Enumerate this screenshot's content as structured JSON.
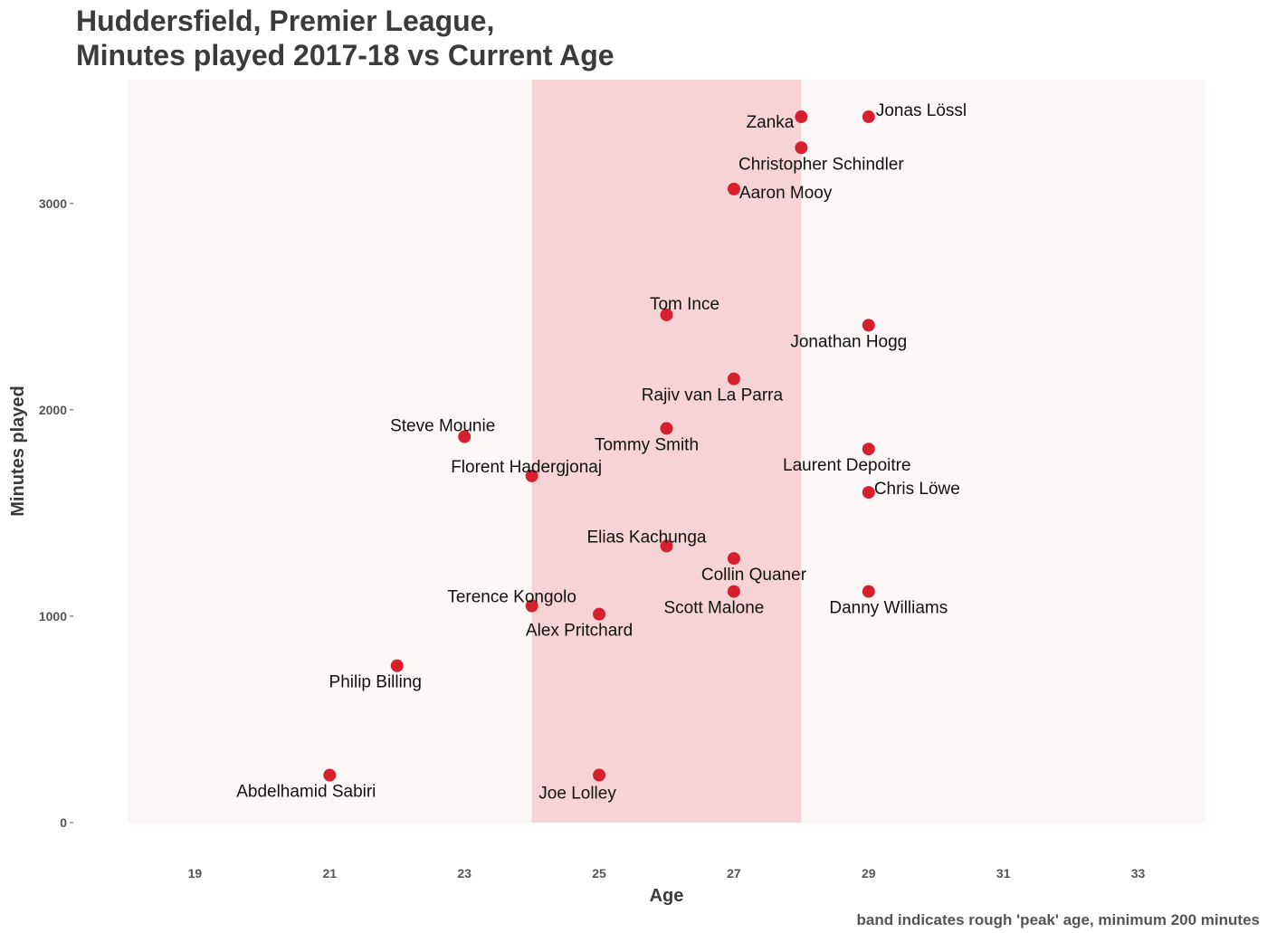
{
  "title_line1": "Huddersfield, Premier League,",
  "title_line2": "Minutes played 2017-18 vs Current Age",
  "caption": "band indicates rough 'peak' age, minimum 200 minutes",
  "colors": {
    "panel": "#fcf7f7",
    "band": "#f6d3d4",
    "point": "#d7202e",
    "text": "#3b3b3b"
  },
  "chart_data": {
    "type": "scatter",
    "xlabel": "Age",
    "ylabel": "Minutes played",
    "xlim": [
      18,
      34
    ],
    "ylim": [
      0,
      3600
    ],
    "x_ticks": [
      19,
      21,
      23,
      25,
      27,
      29,
      31,
      33
    ],
    "y_ticks": [
      0,
      1000,
      2000,
      3000
    ],
    "band": {
      "from": 24,
      "to": 28
    },
    "grid": false,
    "points": [
      {
        "name": "Zanka",
        "x": 28,
        "y": 3420,
        "label_dx": -8,
        "label_dy": 12,
        "anchor": "end"
      },
      {
        "name": "Jonas Lössl",
        "x": 29,
        "y": 3420,
        "label_dx": 8,
        "label_dy": -1,
        "anchor": "start"
      },
      {
        "name": "Christopher Schindler",
        "x": 28,
        "y": 3270,
        "label_dx": 22,
        "label_dy": 24,
        "anchor": "middle"
      },
      {
        "name": "Aaron Mooy",
        "x": 27,
        "y": 3070,
        "label_dx": 6,
        "label_dy": 10,
        "anchor": "start"
      },
      {
        "name": "Tom Ince",
        "x": 26,
        "y": 2460,
        "label_dx": 20,
        "label_dy": -6,
        "anchor": "middle"
      },
      {
        "name": "Jonathan Hogg",
        "x": 29,
        "y": 2410,
        "label_dx": -22,
        "label_dy": 24,
        "anchor": "middle"
      },
      {
        "name": "Rajiv van La Parra",
        "x": 27,
        "y": 2150,
        "label_dx": -24,
        "label_dy": 24,
        "anchor": "middle"
      },
      {
        "name": "Tommy Smith",
        "x": 26,
        "y": 1910,
        "label_dx": -22,
        "label_dy": 24,
        "anchor": "middle"
      },
      {
        "name": "Steve Mounie",
        "x": 23,
        "y": 1870,
        "label_dx": -24,
        "label_dy": -6,
        "anchor": "middle"
      },
      {
        "name": "Laurent Depoitre",
        "x": 29,
        "y": 1810,
        "label_dx": -24,
        "label_dy": 24,
        "anchor": "middle"
      },
      {
        "name": "Florent Hadergjonaj",
        "x": 24,
        "y": 1680,
        "label_dx": -6,
        "label_dy": -4,
        "anchor": "middle"
      },
      {
        "name": "Chris Löwe",
        "x": 29,
        "y": 1600,
        "label_dx": 6,
        "label_dy": 2,
        "anchor": "start"
      },
      {
        "name": "Elias Kachunga",
        "x": 26,
        "y": 1340,
        "label_dx": -22,
        "label_dy": -4,
        "anchor": "middle"
      },
      {
        "name": "Collin Quaner",
        "x": 27,
        "y": 1280,
        "label_dx": 22,
        "label_dy": 24,
        "anchor": "middle"
      },
      {
        "name": "Scott Malone",
        "x": 27,
        "y": 1120,
        "label_dx": -22,
        "label_dy": 24,
        "anchor": "middle"
      },
      {
        "name": "Danny Williams",
        "x": 29,
        "y": 1120,
        "label_dx": 22,
        "label_dy": 24,
        "anchor": "middle"
      },
      {
        "name": "Terence Kongolo",
        "x": 24,
        "y": 1050,
        "label_dx": -22,
        "label_dy": -4,
        "anchor": "middle"
      },
      {
        "name": "Alex Pritchard",
        "x": 25,
        "y": 1010,
        "label_dx": -22,
        "label_dy": 24,
        "anchor": "middle"
      },
      {
        "name": "Philip Billing",
        "x": 22,
        "y": 760,
        "label_dx": -24,
        "label_dy": 24,
        "anchor": "middle"
      },
      {
        "name": "Abdelhamid Sabiri",
        "x": 21,
        "y": 230,
        "label_dx": -26,
        "label_dy": 24,
        "anchor": "middle"
      },
      {
        "name": "Joe Lolley",
        "x": 25,
        "y": 230,
        "label_dx": -24,
        "label_dy": 26,
        "anchor": "middle"
      }
    ]
  }
}
